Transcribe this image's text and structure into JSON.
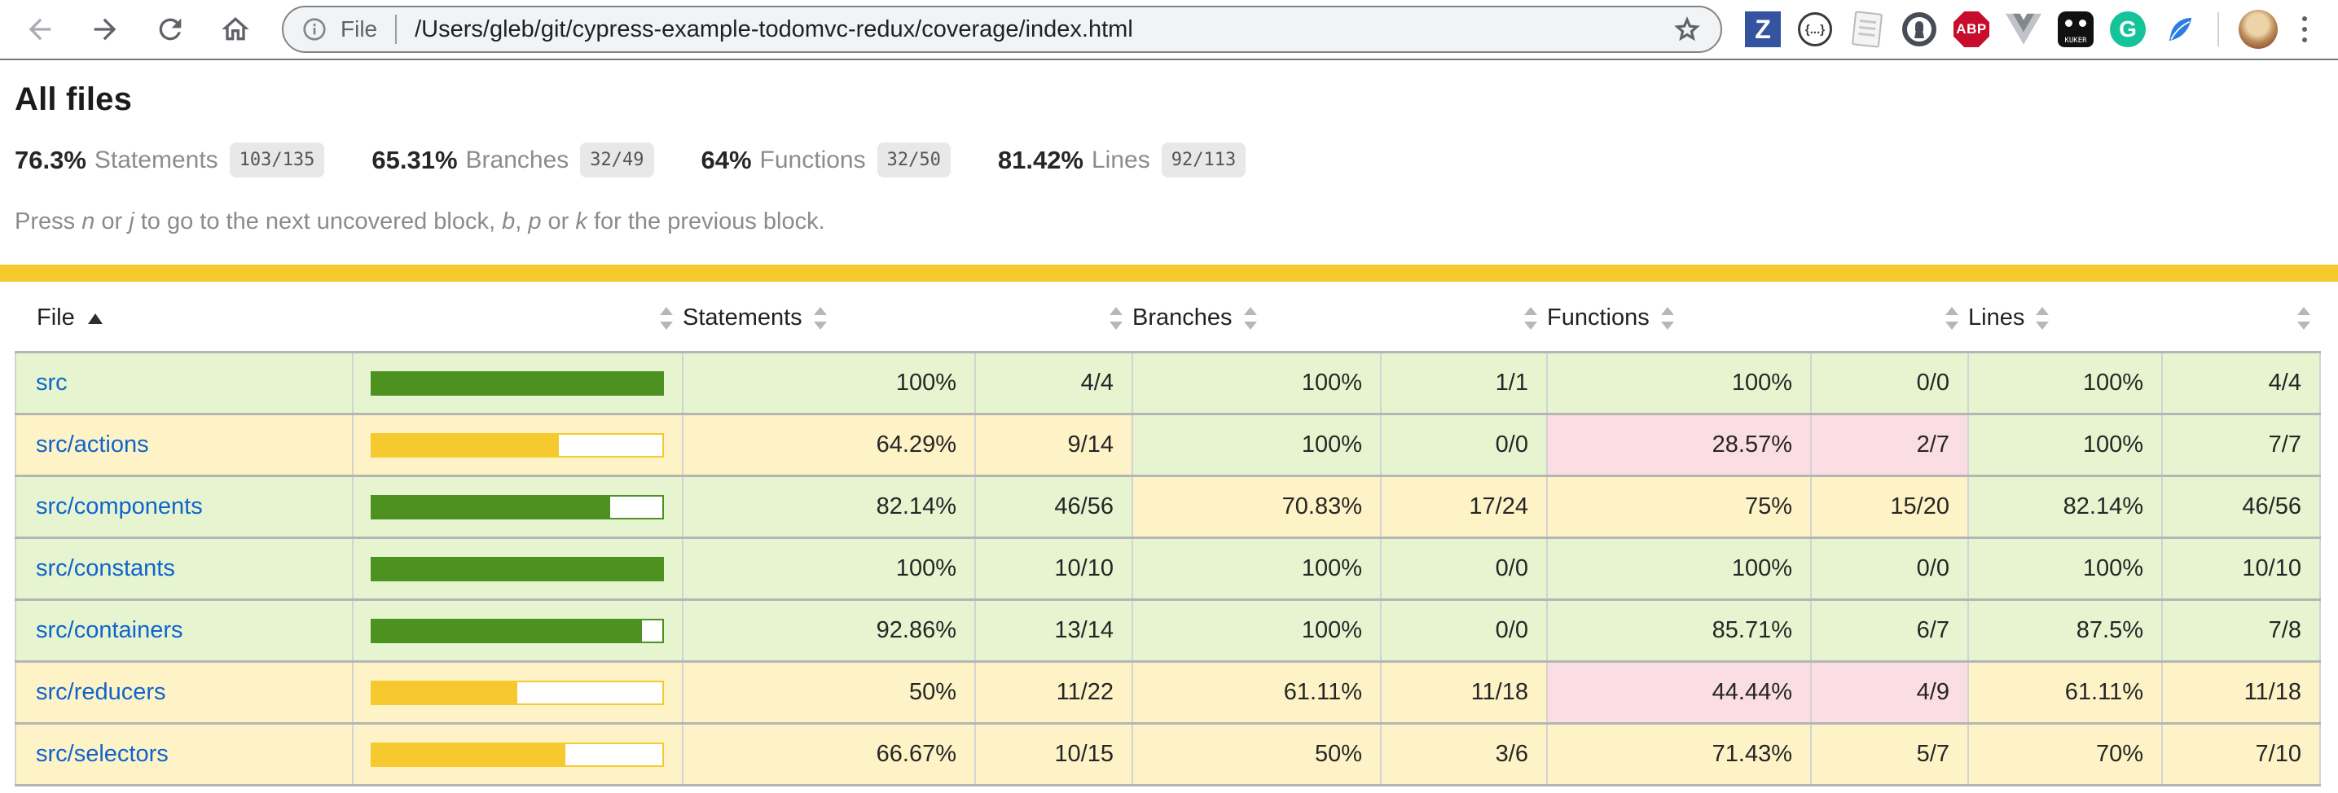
{
  "browser": {
    "toolbar_buttons": [
      "back",
      "forward",
      "reload",
      "home"
    ],
    "url": {
      "scheme_label": "File",
      "path": "/Users/gleb/git/cypress-example-todomvc-redux/coverage/index.html"
    },
    "extensions": {
      "zotero_glyph": "Z",
      "json_formatter_glyph": "{...}",
      "adblock_plus_glyph": "ABP",
      "kuker_glyph": "KUKER",
      "grammarly_glyph": "G"
    }
  },
  "page": {
    "title": "All files",
    "metrics": [
      {
        "pct": "76.3%",
        "label": "Statements",
        "fraction": "103/135"
      },
      {
        "pct": "65.31%",
        "label": "Branches",
        "fraction": "32/49"
      },
      {
        "pct": "64%",
        "label": "Functions",
        "fraction": "32/50"
      },
      {
        "pct": "81.42%",
        "label": "Lines",
        "fraction": "92/113"
      }
    ],
    "hint_segments": [
      {
        "t": "Press "
      },
      {
        "t": "n",
        "i": true
      },
      {
        "t": " or "
      },
      {
        "t": "j",
        "i": true
      },
      {
        "t": " to go to the next uncovered block, "
      },
      {
        "t": "b",
        "i": true
      },
      {
        "t": ", "
      },
      {
        "t": "p",
        "i": true
      },
      {
        "t": " or "
      },
      {
        "t": "k",
        "i": true
      },
      {
        "t": " for the previous block."
      }
    ],
    "colors": {
      "status_line": "#f6ca2e",
      "high_bg": "#e6f5d0",
      "medium_bg": "#fdf3c6",
      "low_bg": "#fbdde4",
      "bar_green": "#4d9221",
      "bar_yellow": "#f6ca2e",
      "link_blue": "#1064cd"
    },
    "table": {
      "columns": {
        "file": "File",
        "statements": "Statements",
        "branches": "Branches",
        "functions": "Functions",
        "lines": "Lines"
      },
      "sort": {
        "column": "File",
        "direction": "asc"
      },
      "rows": [
        {
          "file": "src",
          "file_level": "high",
          "bar": {
            "pct": 100,
            "level": "high"
          },
          "statements": {
            "pct": "100%",
            "frac": "4/4",
            "level": "high"
          },
          "branches": {
            "pct": "100%",
            "frac": "1/1",
            "level": "high"
          },
          "functions": {
            "pct": "100%",
            "frac": "0/0",
            "level": "high"
          },
          "lines": {
            "pct": "100%",
            "frac": "4/4",
            "level": "high"
          }
        },
        {
          "file": "src/actions",
          "file_level": "medium",
          "bar": {
            "pct": 64.29,
            "level": "medium"
          },
          "statements": {
            "pct": "64.29%",
            "frac": "9/14",
            "level": "medium"
          },
          "branches": {
            "pct": "100%",
            "frac": "0/0",
            "level": "high"
          },
          "functions": {
            "pct": "28.57%",
            "frac": "2/7",
            "level": "low"
          },
          "lines": {
            "pct": "100%",
            "frac": "7/7",
            "level": "high"
          }
        },
        {
          "file": "src/components",
          "file_level": "high",
          "bar": {
            "pct": 82.14,
            "level": "high"
          },
          "statements": {
            "pct": "82.14%",
            "frac": "46/56",
            "level": "high"
          },
          "branches": {
            "pct": "70.83%",
            "frac": "17/24",
            "level": "medium"
          },
          "functions": {
            "pct": "75%",
            "frac": "15/20",
            "level": "medium"
          },
          "lines": {
            "pct": "82.14%",
            "frac": "46/56",
            "level": "high"
          }
        },
        {
          "file": "src/constants",
          "file_level": "high",
          "bar": {
            "pct": 100,
            "level": "high"
          },
          "statements": {
            "pct": "100%",
            "frac": "10/10",
            "level": "high"
          },
          "branches": {
            "pct": "100%",
            "frac": "0/0",
            "level": "high"
          },
          "functions": {
            "pct": "100%",
            "frac": "0/0",
            "level": "high"
          },
          "lines": {
            "pct": "100%",
            "frac": "10/10",
            "level": "high"
          }
        },
        {
          "file": "src/containers",
          "file_level": "high",
          "bar": {
            "pct": 92.86,
            "level": "high"
          },
          "statements": {
            "pct": "92.86%",
            "frac": "13/14",
            "level": "high"
          },
          "branches": {
            "pct": "100%",
            "frac": "0/0",
            "level": "high"
          },
          "functions": {
            "pct": "85.71%",
            "frac": "6/7",
            "level": "high"
          },
          "lines": {
            "pct": "87.5%",
            "frac": "7/8",
            "level": "high"
          }
        },
        {
          "file": "src/reducers",
          "file_level": "medium",
          "bar": {
            "pct": 50,
            "level": "medium"
          },
          "statements": {
            "pct": "50%",
            "frac": "11/22",
            "level": "medium"
          },
          "branches": {
            "pct": "61.11%",
            "frac": "11/18",
            "level": "medium"
          },
          "functions": {
            "pct": "44.44%",
            "frac": "4/9",
            "level": "low"
          },
          "lines": {
            "pct": "61.11%",
            "frac": "11/18",
            "level": "medium"
          }
        },
        {
          "file": "src/selectors",
          "file_level": "medium",
          "bar": {
            "pct": 66.67,
            "level": "medium"
          },
          "statements": {
            "pct": "66.67%",
            "frac": "10/15",
            "level": "medium"
          },
          "branches": {
            "pct": "50%",
            "frac": "3/6",
            "level": "medium"
          },
          "functions": {
            "pct": "71.43%",
            "frac": "5/7",
            "level": "medium"
          },
          "lines": {
            "pct": "70%",
            "frac": "7/10",
            "level": "medium"
          }
        }
      ]
    }
  }
}
